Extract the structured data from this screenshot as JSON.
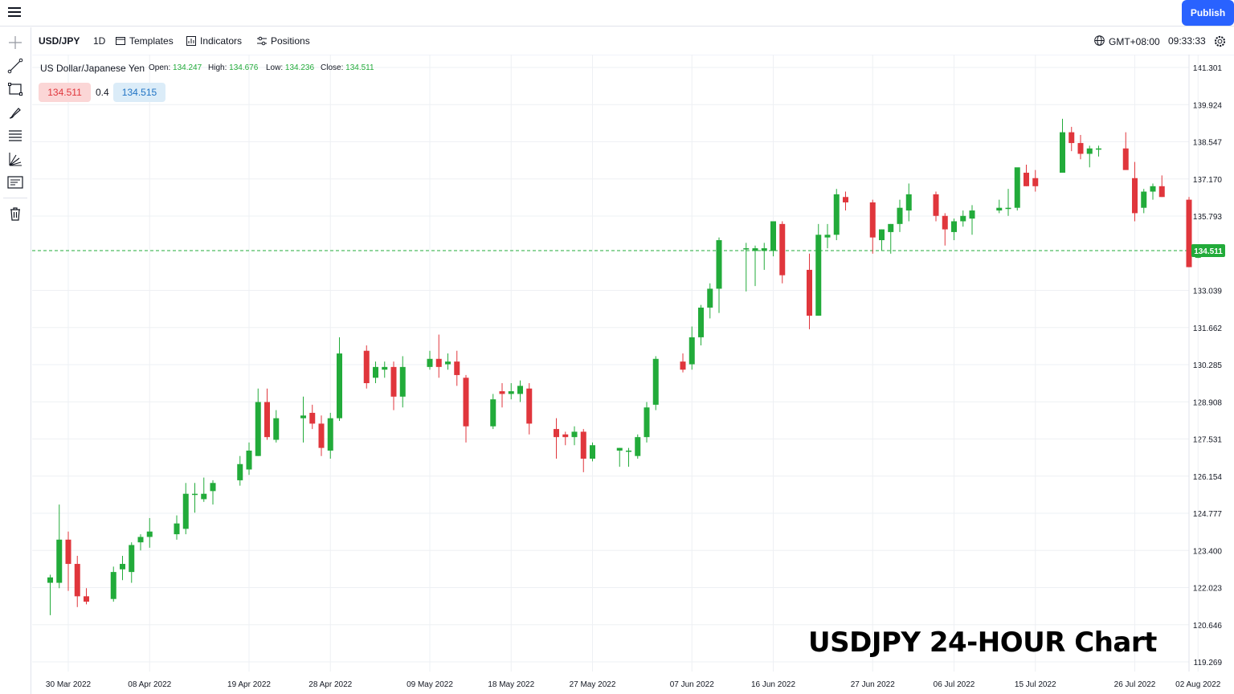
{
  "header": {
    "publish_label": "Publish"
  },
  "toolbar": {
    "symbol": "USD/JPY",
    "interval": "1D",
    "templates_label": "Templates",
    "indicators_label": "Indicators",
    "positions_label": "Positions",
    "timezone": "GMT+08:00",
    "clock": "09:33:33"
  },
  "sidebar": {
    "tools": [
      "crosshair-icon",
      "trend-line-icon",
      "rectangle-icon",
      "brush-icon",
      "fib-retracement-icon",
      "pitchfork-icon",
      "text-note-icon",
      "trash-icon"
    ]
  },
  "legend": {
    "name": "US Dollar/Japanese Yen",
    "open_label": "Open:",
    "open": "134.247",
    "high_label": "High:",
    "high": "134.676",
    "low_label": "Low:",
    "low": "134.236",
    "close_label": "Close:",
    "close": "134.511"
  },
  "quote": {
    "bid": "134.511",
    "spread": "0.4",
    "ask": "134.515"
  },
  "overlay_title": "USDJPY 24-HOUR Chart",
  "colors": {
    "up": "#22ab3a",
    "down": "#e0363c",
    "grid": "#eef0f4",
    "last_price_line": "#22ab3a",
    "accent": "#2962ff"
  },
  "chart_data": {
    "type": "candlestick",
    "symbol": "USD/JPY",
    "interval": "1D",
    "ylim": [
      119.269,
      141.301
    ],
    "y_ticks": [
      "141.301",
      "139.924",
      "138.547",
      "137.170",
      "135.793",
      "133.039",
      "131.662",
      "130.285",
      "128.908",
      "127.531",
      "126.154",
      "124.777",
      "123.400",
      "122.023",
      "120.646",
      "119.269"
    ],
    "x_ticks": [
      {
        "label": "30 Mar 2022",
        "date": "2022-03-30"
      },
      {
        "label": "08 Apr 2022",
        "date": "2022-04-08"
      },
      {
        "label": "19 Apr 2022",
        "date": "2022-04-19"
      },
      {
        "label": "28 Apr 2022",
        "date": "2022-04-28"
      },
      {
        "label": "09 May 2022",
        "date": "2022-05-09"
      },
      {
        "label": "18 May 2022",
        "date": "2022-05-18"
      },
      {
        "label": "27 May 2022",
        "date": "2022-05-27"
      },
      {
        "label": "07 Jun 2022",
        "date": "2022-06-07"
      },
      {
        "label": "16 Jun 2022",
        "date": "2022-06-16"
      },
      {
        "label": "27 Jun 2022",
        "date": "2022-06-27"
      },
      {
        "label": "06 Jul 2022",
        "date": "2022-07-06"
      },
      {
        "label": "15 Jul 2022",
        "date": "2022-07-15"
      },
      {
        "label": "26 Jul 2022",
        "date": "2022-07-26"
      },
      {
        "label": "02 Aug 2022",
        "date": "2022-08-02"
      }
    ],
    "last_price": "134.511",
    "candles": [
      {
        "date": "2022-03-28",
        "o": 122.2,
        "h": 122.5,
        "l": 121.0,
        "c": 122.4
      },
      {
        "date": "2022-03-29",
        "o": 122.2,
        "h": 125.1,
        "l": 122.0,
        "c": 123.8
      },
      {
        "date": "2022-03-30",
        "o": 123.8,
        "h": 124.1,
        "l": 121.9,
        "c": 122.9
      },
      {
        "date": "2022-03-31",
        "o": 122.9,
        "h": 123.2,
        "l": 121.3,
        "c": 121.7
      },
      {
        "date": "2022-04-01",
        "o": 121.7,
        "h": 122.0,
        "l": 121.4,
        "c": 121.5
      },
      {
        "date": "2022-04-04",
        "o": 121.6,
        "h": 122.8,
        "l": 121.5,
        "c": 122.6
      },
      {
        "date": "2022-04-05",
        "o": 122.7,
        "h": 123.2,
        "l": 122.3,
        "c": 122.9
      },
      {
        "date": "2022-04-06",
        "o": 122.6,
        "h": 123.7,
        "l": 122.2,
        "c": 123.6
      },
      {
        "date": "2022-04-07",
        "o": 123.7,
        "h": 124.0,
        "l": 123.4,
        "c": 123.9
      },
      {
        "date": "2022-04-08",
        "o": 123.9,
        "h": 124.6,
        "l": 123.5,
        "c": 124.1
      },
      {
        "date": "2022-04-11",
        "o": 124.0,
        "h": 124.7,
        "l": 123.8,
        "c": 124.4
      },
      {
        "date": "2022-04-12",
        "o": 124.2,
        "h": 125.9,
        "l": 124.0,
        "c": 125.5
      },
      {
        "date": "2022-04-13",
        "o": 125.5,
        "h": 125.9,
        "l": 124.8,
        "c": 125.5
      },
      {
        "date": "2022-04-14",
        "o": 125.3,
        "h": 126.1,
        "l": 125.2,
        "c": 125.5
      },
      {
        "date": "2022-04-15",
        "o": 125.6,
        "h": 126.0,
        "l": 125.1,
        "c": 125.9
      },
      {
        "date": "2022-04-18",
        "o": 126.0,
        "h": 126.9,
        "l": 125.8,
        "c": 126.6
      },
      {
        "date": "2022-04-19",
        "o": 126.4,
        "h": 127.4,
        "l": 126.2,
        "c": 127.1
      },
      {
        "date": "2022-04-20",
        "o": 126.9,
        "h": 129.4,
        "l": 126.9,
        "c": 128.9
      },
      {
        "date": "2022-04-21",
        "o": 128.9,
        "h": 129.4,
        "l": 127.5,
        "c": 127.6
      },
      {
        "date": "2022-04-22",
        "o": 127.5,
        "h": 128.6,
        "l": 127.4,
        "c": 128.3
      },
      {
        "date": "2022-04-25",
        "o": 128.3,
        "h": 129.1,
        "l": 127.4,
        "c": 128.4
      },
      {
        "date": "2022-04-26",
        "o": 128.5,
        "h": 128.8,
        "l": 127.9,
        "c": 128.1
      },
      {
        "date": "2022-04-27",
        "o": 128.1,
        "h": 128.4,
        "l": 126.9,
        "c": 127.2
      },
      {
        "date": "2022-04-28",
        "o": 127.1,
        "h": 128.5,
        "l": 126.8,
        "c": 128.3
      },
      {
        "date": "2022-04-29",
        "o": 128.3,
        "h": 131.3,
        "l": 128.2,
        "c": 130.7
      },
      {
        "date": "2022-05-02",
        "o": 130.8,
        "h": 131.0,
        "l": 129.4,
        "c": 129.6
      },
      {
        "date": "2022-05-03",
        "o": 129.8,
        "h": 130.4,
        "l": 129.6,
        "c": 130.2
      },
      {
        "date": "2022-05-04",
        "o": 130.1,
        "h": 130.4,
        "l": 129.8,
        "c": 130.2
      },
      {
        "date": "2022-05-05",
        "o": 130.2,
        "h": 130.4,
        "l": 128.6,
        "c": 129.1
      },
      {
        "date": "2022-05-06",
        "o": 129.1,
        "h": 130.6,
        "l": 128.7,
        "c": 130.2
      },
      {
        "date": "2022-05-09",
        "o": 130.2,
        "h": 130.8,
        "l": 130.1,
        "c": 130.5
      },
      {
        "date": "2022-05-10",
        "o": 130.5,
        "h": 131.4,
        "l": 129.8,
        "c": 130.2
      },
      {
        "date": "2022-05-11",
        "o": 130.3,
        "h": 130.7,
        "l": 130.1,
        "c": 130.4
      },
      {
        "date": "2022-05-12",
        "o": 130.4,
        "h": 130.8,
        "l": 129.5,
        "c": 129.9
      },
      {
        "date": "2022-05-13",
        "o": 129.8,
        "h": 129.9,
        "l": 127.4,
        "c": 128.0
      },
      {
        "date": "2022-05-16",
        "o": 128.0,
        "h": 129.2,
        "l": 127.9,
        "c": 129.0
      },
      {
        "date": "2022-05-17",
        "o": 129.3,
        "h": 129.6,
        "l": 128.7,
        "c": 129.2
      },
      {
        "date": "2022-05-18",
        "o": 129.2,
        "h": 129.6,
        "l": 129.0,
        "c": 129.3
      },
      {
        "date": "2022-05-19",
        "o": 129.2,
        "h": 129.7,
        "l": 128.9,
        "c": 129.5
      },
      {
        "date": "2022-05-20",
        "o": 129.4,
        "h": 129.6,
        "l": 127.7,
        "c": 128.1
      },
      {
        "date": "2022-05-23",
        "o": 127.9,
        "h": 128.3,
        "l": 126.8,
        "c": 127.6
      },
      {
        "date": "2022-05-24",
        "o": 127.7,
        "h": 127.8,
        "l": 127.3,
        "c": 127.6
      },
      {
        "date": "2022-05-25",
        "o": 127.6,
        "h": 128.0,
        "l": 127.3,
        "c": 127.8
      },
      {
        "date": "2022-05-26",
        "o": 127.8,
        "h": 127.9,
        "l": 126.3,
        "c": 126.8
      },
      {
        "date": "2022-05-27",
        "o": 126.8,
        "h": 127.4,
        "l": 126.7,
        "c": 127.3
      },
      {
        "date": "2022-05-30",
        "o": 127.1,
        "h": 127.2,
        "l": 126.5,
        "c": 127.2
      },
      {
        "date": "2022-05-31",
        "o": 127.1,
        "h": 127.2,
        "l": 126.5,
        "c": 127.1
      },
      {
        "date": "2022-06-01",
        "o": 126.9,
        "h": 127.7,
        "l": 126.8,
        "c": 127.6
      },
      {
        "date": "2022-06-02",
        "o": 127.6,
        "h": 128.9,
        "l": 127.4,
        "c": 128.7
      },
      {
        "date": "2022-06-03",
        "o": 128.8,
        "h": 130.6,
        "l": 128.6,
        "c": 130.5
      },
      {
        "date": "2022-06-06",
        "o": 130.4,
        "h": 130.7,
        "l": 130.0,
        "c": 130.1
      },
      {
        "date": "2022-06-07",
        "o": 130.3,
        "h": 131.7,
        "l": 130.1,
        "c": 131.3
      },
      {
        "date": "2022-06-08",
        "o": 131.3,
        "h": 132.5,
        "l": 131.0,
        "c": 132.4
      },
      {
        "date": "2022-06-09",
        "o": 132.4,
        "h": 133.3,
        "l": 132.0,
        "c": 133.1
      },
      {
        "date": "2022-06-10",
        "o": 133.1,
        "h": 135.0,
        "l": 132.2,
        "c": 134.9
      },
      {
        "date": "2022-06-13",
        "o": 134.6,
        "h": 134.8,
        "l": 133.0,
        "c": 134.6
      },
      {
        "date": "2022-06-14",
        "o": 134.5,
        "h": 134.7,
        "l": 133.2,
        "c": 134.6
      },
      {
        "date": "2022-06-15",
        "o": 134.5,
        "h": 134.8,
        "l": 133.8,
        "c": 134.6
      },
      {
        "date": "2022-06-16",
        "o": 134.5,
        "h": 135.6,
        "l": 134.3,
        "c": 135.6
      },
      {
        "date": "2022-06-17",
        "o": 135.5,
        "h": 135.6,
        "l": 133.3,
        "c": 133.6
      },
      {
        "date": "2022-06-20",
        "o": 133.8,
        "h": 134.4,
        "l": 131.6,
        "c": 132.1
      },
      {
        "date": "2022-06-21",
        "o": 132.1,
        "h": 135.5,
        "l": 132.1,
        "c": 135.1
      },
      {
        "date": "2022-06-22",
        "o": 135.0,
        "h": 135.5,
        "l": 134.6,
        "c": 135.1
      },
      {
        "date": "2022-06-23",
        "o": 135.1,
        "h": 136.8,
        "l": 134.9,
        "c": 136.6
      },
      {
        "date": "2022-06-24",
        "o": 136.5,
        "h": 136.7,
        "l": 136.0,
        "c": 136.3
      },
      {
        "date": "2022-06-27",
        "o": 136.3,
        "h": 136.4,
        "l": 134.4,
        "c": 135.0
      },
      {
        "date": "2022-06-28",
        "o": 134.9,
        "h": 135.3,
        "l": 134.5,
        "c": 135.3
      },
      {
        "date": "2022-06-29",
        "o": 135.2,
        "h": 135.5,
        "l": 134.4,
        "c": 135.5
      },
      {
        "date": "2022-06-30",
        "o": 135.5,
        "h": 136.4,
        "l": 135.2,
        "c": 136.1
      },
      {
        "date": "2022-07-01",
        "o": 136.0,
        "h": 137.0,
        "l": 135.6,
        "c": 136.6
      },
      {
        "date": "2022-07-04",
        "o": 136.6,
        "h": 136.7,
        "l": 135.6,
        "c": 135.8
      },
      {
        "date": "2022-07-05",
        "o": 135.8,
        "h": 135.9,
        "l": 134.7,
        "c": 135.3
      },
      {
        "date": "2022-07-06",
        "o": 135.2,
        "h": 135.7,
        "l": 134.9,
        "c": 135.6
      },
      {
        "date": "2022-07-07",
        "o": 135.6,
        "h": 136.0,
        "l": 135.4,
        "c": 135.8
      },
      {
        "date": "2022-07-08",
        "o": 135.7,
        "h": 136.2,
        "l": 135.1,
        "c": 136.0
      },
      {
        "date": "2022-07-11",
        "o": 136.0,
        "h": 136.4,
        "l": 135.9,
        "c": 136.1
      },
      {
        "date": "2022-07-12",
        "o": 136.1,
        "h": 136.8,
        "l": 135.8,
        "c": 136.1
      },
      {
        "date": "2022-07-13",
        "o": 136.1,
        "h": 137.5,
        "l": 136.0,
        "c": 137.6
      },
      {
        "date": "2022-07-14",
        "o": 137.4,
        "h": 137.7,
        "l": 136.9,
        "c": 136.9
      },
      {
        "date": "2022-07-15",
        "o": 137.2,
        "h": 137.5,
        "l": 136.7,
        "c": 136.9
      },
      {
        "date": "2022-07-18",
        "o": 137.4,
        "h": 139.4,
        "l": 137.4,
        "c": 138.9
      },
      {
        "date": "2022-07-19",
        "o": 138.9,
        "h": 139.1,
        "l": 138.2,
        "c": 138.5
      },
      {
        "date": "2022-07-20",
        "o": 138.5,
        "h": 138.8,
        "l": 137.9,
        "c": 138.1
      },
      {
        "date": "2022-07-21",
        "o": 138.1,
        "h": 138.4,
        "l": 137.6,
        "c": 138.3
      },
      {
        "date": "2022-07-22",
        "o": 138.3,
        "h": 138.4,
        "l": 138.0,
        "c": 138.3
      },
      {
        "date": "2022-07-25",
        "o": 138.3,
        "h": 138.9,
        "l": 137.6,
        "c": 137.5
      },
      {
        "date": "2022-07-26",
        "o": 137.2,
        "h": 137.8,
        "l": 135.6,
        "c": 135.9
      },
      {
        "date": "2022-07-27",
        "o": 136.1,
        "h": 136.8,
        "l": 135.9,
        "c": 136.7
      },
      {
        "date": "2022-07-28",
        "o": 136.7,
        "h": 137.0,
        "l": 136.4,
        "c": 136.9
      },
      {
        "date": "2022-07-29",
        "o": 136.9,
        "h": 137.3,
        "l": 136.5,
        "c": 136.5
      },
      {
        "date": "2022-08-01",
        "o": 136.4,
        "h": 136.5,
        "l": 133.9,
        "c": 133.9
      },
      {
        "date": "2022-08-02",
        "o": 134.247,
        "h": 134.676,
        "l": 134.236,
        "c": 134.511
      }
    ]
  }
}
